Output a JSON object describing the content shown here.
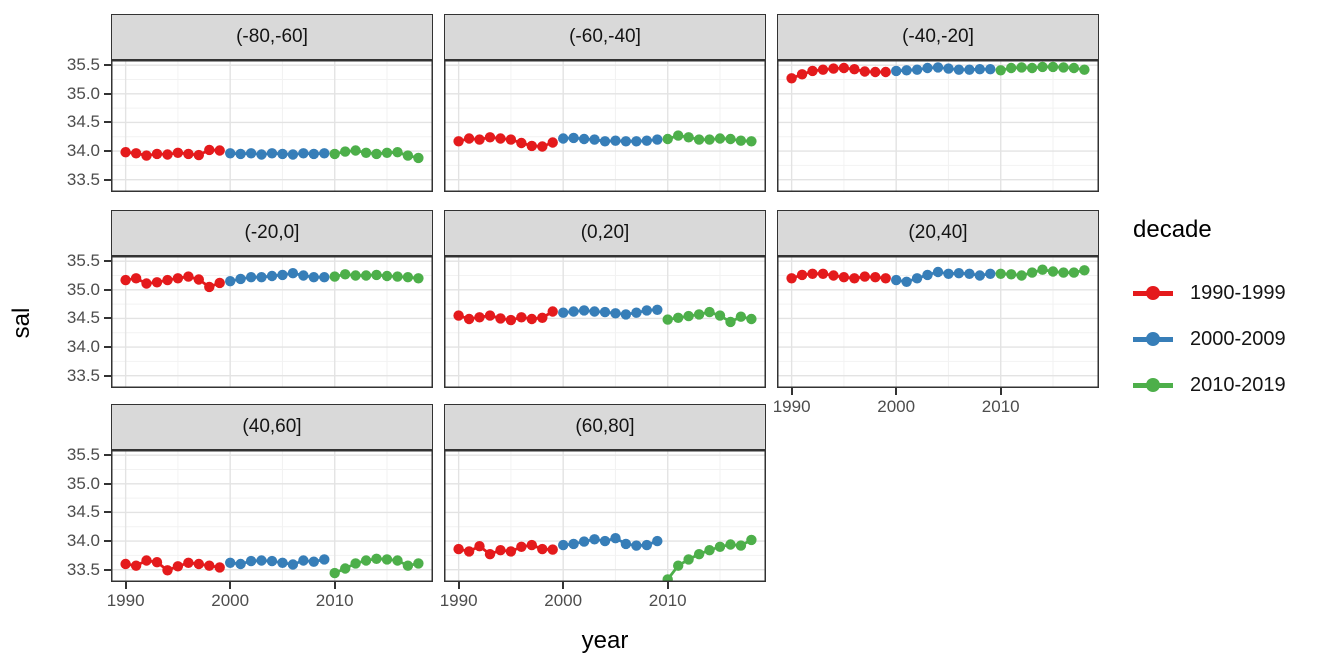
{
  "chart": {
    "ylabel": "sal",
    "xlabel": "year",
    "legend": {
      "title": "decade",
      "items": [
        {
          "label": "1990-1999",
          "color": "#E41A1C"
        },
        {
          "label": "2000-2009",
          "color": "#377EB8"
        },
        {
          "label": "2010-2019",
          "color": "#4DAF4A"
        }
      ]
    }
  },
  "chart_data": {
    "type": "scatter",
    "title": "",
    "xlabel": "year",
    "ylabel": "sal",
    "legend_title": "decade",
    "legend_position": "right",
    "grid": true,
    "x_range": [
      1988.6,
      2019.4
    ],
    "y_range": [
      33.285,
      35.59
    ],
    "x_ticks": [
      1990,
      2000,
      2010
    ],
    "x_tick_labels": [
      "1990",
      "2000",
      "2010"
    ],
    "y_ticks": [
      35.5,
      35.0,
      34.5,
      34.0,
      33.5
    ],
    "y_tick_labels": [
      "35.5",
      "35.0",
      "34.5",
      "34.0",
      "33.5"
    ],
    "facets": [
      {
        "label": "(-80,-60]",
        "row": 0,
        "col": 0,
        "show_y_axis": true,
        "show_x_axis": false,
        "series": [
          {
            "decade": 0,
            "start_year": 1990,
            "values": [
              33.98,
              33.96,
              33.92,
              33.95,
              33.94,
              33.97,
              33.95,
              33.93,
              34.02,
              34.01
            ]
          },
          {
            "decade": 1,
            "start_year": 2000,
            "values": [
              33.96,
              33.95,
              33.96,
              33.94,
              33.96,
              33.95,
              33.94,
              33.96,
              33.95,
              33.96
            ]
          },
          {
            "decade": 2,
            "start_year": 2010,
            "values": [
              33.95,
              33.99,
              34.01,
              33.97,
              33.95,
              33.97,
              33.98,
              33.92,
              33.88
            ]
          }
        ]
      },
      {
        "label": "(-60,-40]",
        "row": 0,
        "col": 1,
        "show_y_axis": false,
        "show_x_axis": false,
        "series": [
          {
            "decade": 0,
            "start_year": 1990,
            "values": [
              34.17,
              34.22,
              34.2,
              34.24,
              34.22,
              34.2,
              34.14,
              34.09,
              34.08,
              34.15
            ]
          },
          {
            "decade": 1,
            "start_year": 2000,
            "values": [
              34.22,
              34.23,
              34.21,
              34.2,
              34.17,
              34.18,
              34.17,
              34.17,
              34.18,
              34.2
            ]
          },
          {
            "decade": 2,
            "start_year": 2010,
            "values": [
              34.21,
              34.27,
              34.24,
              34.2,
              34.2,
              34.22,
              34.21,
              34.18,
              34.17
            ]
          }
        ]
      },
      {
        "label": "(-40,-20]",
        "row": 0,
        "col": 2,
        "show_y_axis": false,
        "show_x_axis": false,
        "series": [
          {
            "decade": 0,
            "start_year": 1990,
            "values": [
              35.27,
              35.34,
              35.4,
              35.42,
              35.44,
              35.45,
              35.43,
              35.39,
              35.38,
              35.38
            ]
          },
          {
            "decade": 1,
            "start_year": 2000,
            "values": [
              35.4,
              35.41,
              35.42,
              35.45,
              35.46,
              35.44,
              35.42,
              35.42,
              35.43,
              35.43
            ]
          },
          {
            "decade": 2,
            "start_year": 2010,
            "values": [
              35.41,
              35.45,
              35.46,
              35.45,
              35.47,
              35.47,
              35.46,
              35.45,
              35.42
            ]
          }
        ]
      },
      {
        "label": "(-20,0]",
        "row": 1,
        "col": 0,
        "show_y_axis": true,
        "show_x_axis": false,
        "series": [
          {
            "decade": 0,
            "start_year": 1990,
            "values": [
              35.17,
              35.2,
              35.11,
              35.13,
              35.17,
              35.2,
              35.23,
              35.18,
              35.05,
              35.12
            ]
          },
          {
            "decade": 1,
            "start_year": 2000,
            "values": [
              35.15,
              35.19,
              35.22,
              35.22,
              35.24,
              35.26,
              35.29,
              35.25,
              35.22,
              35.22
            ]
          },
          {
            "decade": 2,
            "start_year": 2010,
            "values": [
              35.23,
              35.27,
              35.25,
              35.25,
              35.26,
              35.24,
              35.23,
              35.22,
              35.2
            ]
          }
        ]
      },
      {
        "label": "(0,20]",
        "row": 1,
        "col": 1,
        "show_y_axis": false,
        "show_x_axis": false,
        "series": [
          {
            "decade": 0,
            "start_year": 1990,
            "values": [
              34.55,
              34.49,
              34.52,
              34.55,
              34.5,
              34.47,
              34.52,
              34.49,
              34.51,
              34.62
            ]
          },
          {
            "decade": 1,
            "start_year": 2000,
            "values": [
              34.6,
              34.62,
              34.64,
              34.62,
              34.61,
              34.59,
              34.57,
              34.6,
              34.64,
              34.65
            ]
          },
          {
            "decade": 2,
            "start_year": 2010,
            "values": [
              34.48,
              34.51,
              34.54,
              34.57,
              34.61,
              34.55,
              34.44,
              34.53,
              34.49
            ]
          }
        ]
      },
      {
        "label": "(20,40]",
        "row": 1,
        "col": 2,
        "show_y_axis": false,
        "show_x_axis": true,
        "series": [
          {
            "decade": 0,
            "start_year": 1990,
            "values": [
              35.2,
              35.26,
              35.28,
              35.28,
              35.25,
              35.22,
              35.2,
              35.23,
              35.22,
              35.2
            ]
          },
          {
            "decade": 1,
            "start_year": 2000,
            "values": [
              35.17,
              35.14,
              35.2,
              35.26,
              35.31,
              35.28,
              35.29,
              35.28,
              35.25,
              35.28
            ]
          },
          {
            "decade": 2,
            "start_year": 2010,
            "values": [
              35.28,
              35.27,
              35.25,
              35.3,
              35.35,
              35.32,
              35.3,
              35.3,
              35.34
            ]
          }
        ]
      },
      {
        "label": "(40,60]",
        "row": 2,
        "col": 0,
        "show_y_axis": true,
        "show_x_axis": true,
        "series": [
          {
            "decade": 0,
            "start_year": 1990,
            "values": [
              33.6,
              33.57,
              33.66,
              33.63,
              33.49,
              33.56,
              33.62,
              33.6,
              33.57,
              33.54
            ]
          },
          {
            "decade": 1,
            "start_year": 2000,
            "values": [
              33.62,
              33.6,
              33.65,
              33.66,
              33.65,
              33.62,
              33.59,
              33.66,
              33.64,
              33.68
            ]
          },
          {
            "decade": 2,
            "start_year": 2010,
            "values": [
              33.44,
              33.52,
              33.61,
              33.66,
              33.69,
              33.68,
              33.66,
              33.57,
              33.61
            ]
          }
        ]
      },
      {
        "label": "(60,80]",
        "row": 2,
        "col": 1,
        "show_y_axis": false,
        "show_x_axis": true,
        "series": [
          {
            "decade": 0,
            "start_year": 1990,
            "values": [
              33.86,
              33.82,
              33.91,
              33.77,
              33.84,
              33.82,
              33.9,
              33.93,
              33.86,
              33.85
            ]
          },
          {
            "decade": 1,
            "start_year": 2000,
            "values": [
              33.93,
              33.95,
              33.99,
              34.03,
              34.0,
              34.05,
              33.95,
              33.92,
              33.93,
              34.0
            ]
          },
          {
            "decade": 2,
            "start_year": 2010,
            "values": [
              33.33,
              33.57,
              33.68,
              33.77,
              33.84,
              33.9,
              33.94,
              33.92,
              34.02
            ]
          }
        ]
      }
    ]
  },
  "style": {
    "strip_bg": "#d9d9d9",
    "panel_border": "#333333",
    "grid_major": "#e3e3e3",
    "grid_minor": "#f2f2f2",
    "axis_text": "#4d4d4d"
  }
}
